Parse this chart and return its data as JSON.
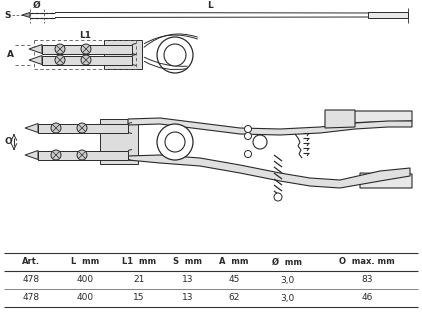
{
  "table_headers": [
    "Art.",
    "L  mm",
    "L1  mm",
    "S  mm",
    "A  mm",
    "Ø  mm",
    "O  max. mm"
  ],
  "table_rows": [
    [
      "478",
      "400",
      "21",
      "13",
      "45",
      "3,0",
      "83"
    ],
    [
      "478",
      "400",
      "15",
      "13",
      "62",
      "3,0",
      "46"
    ]
  ],
  "bg_color": "#ffffff",
  "fig_width": 4.22,
  "fig_height": 3.36,
  "dpi": 100,
  "lc": "#2a2a2a",
  "fc": "#e8e8e8"
}
